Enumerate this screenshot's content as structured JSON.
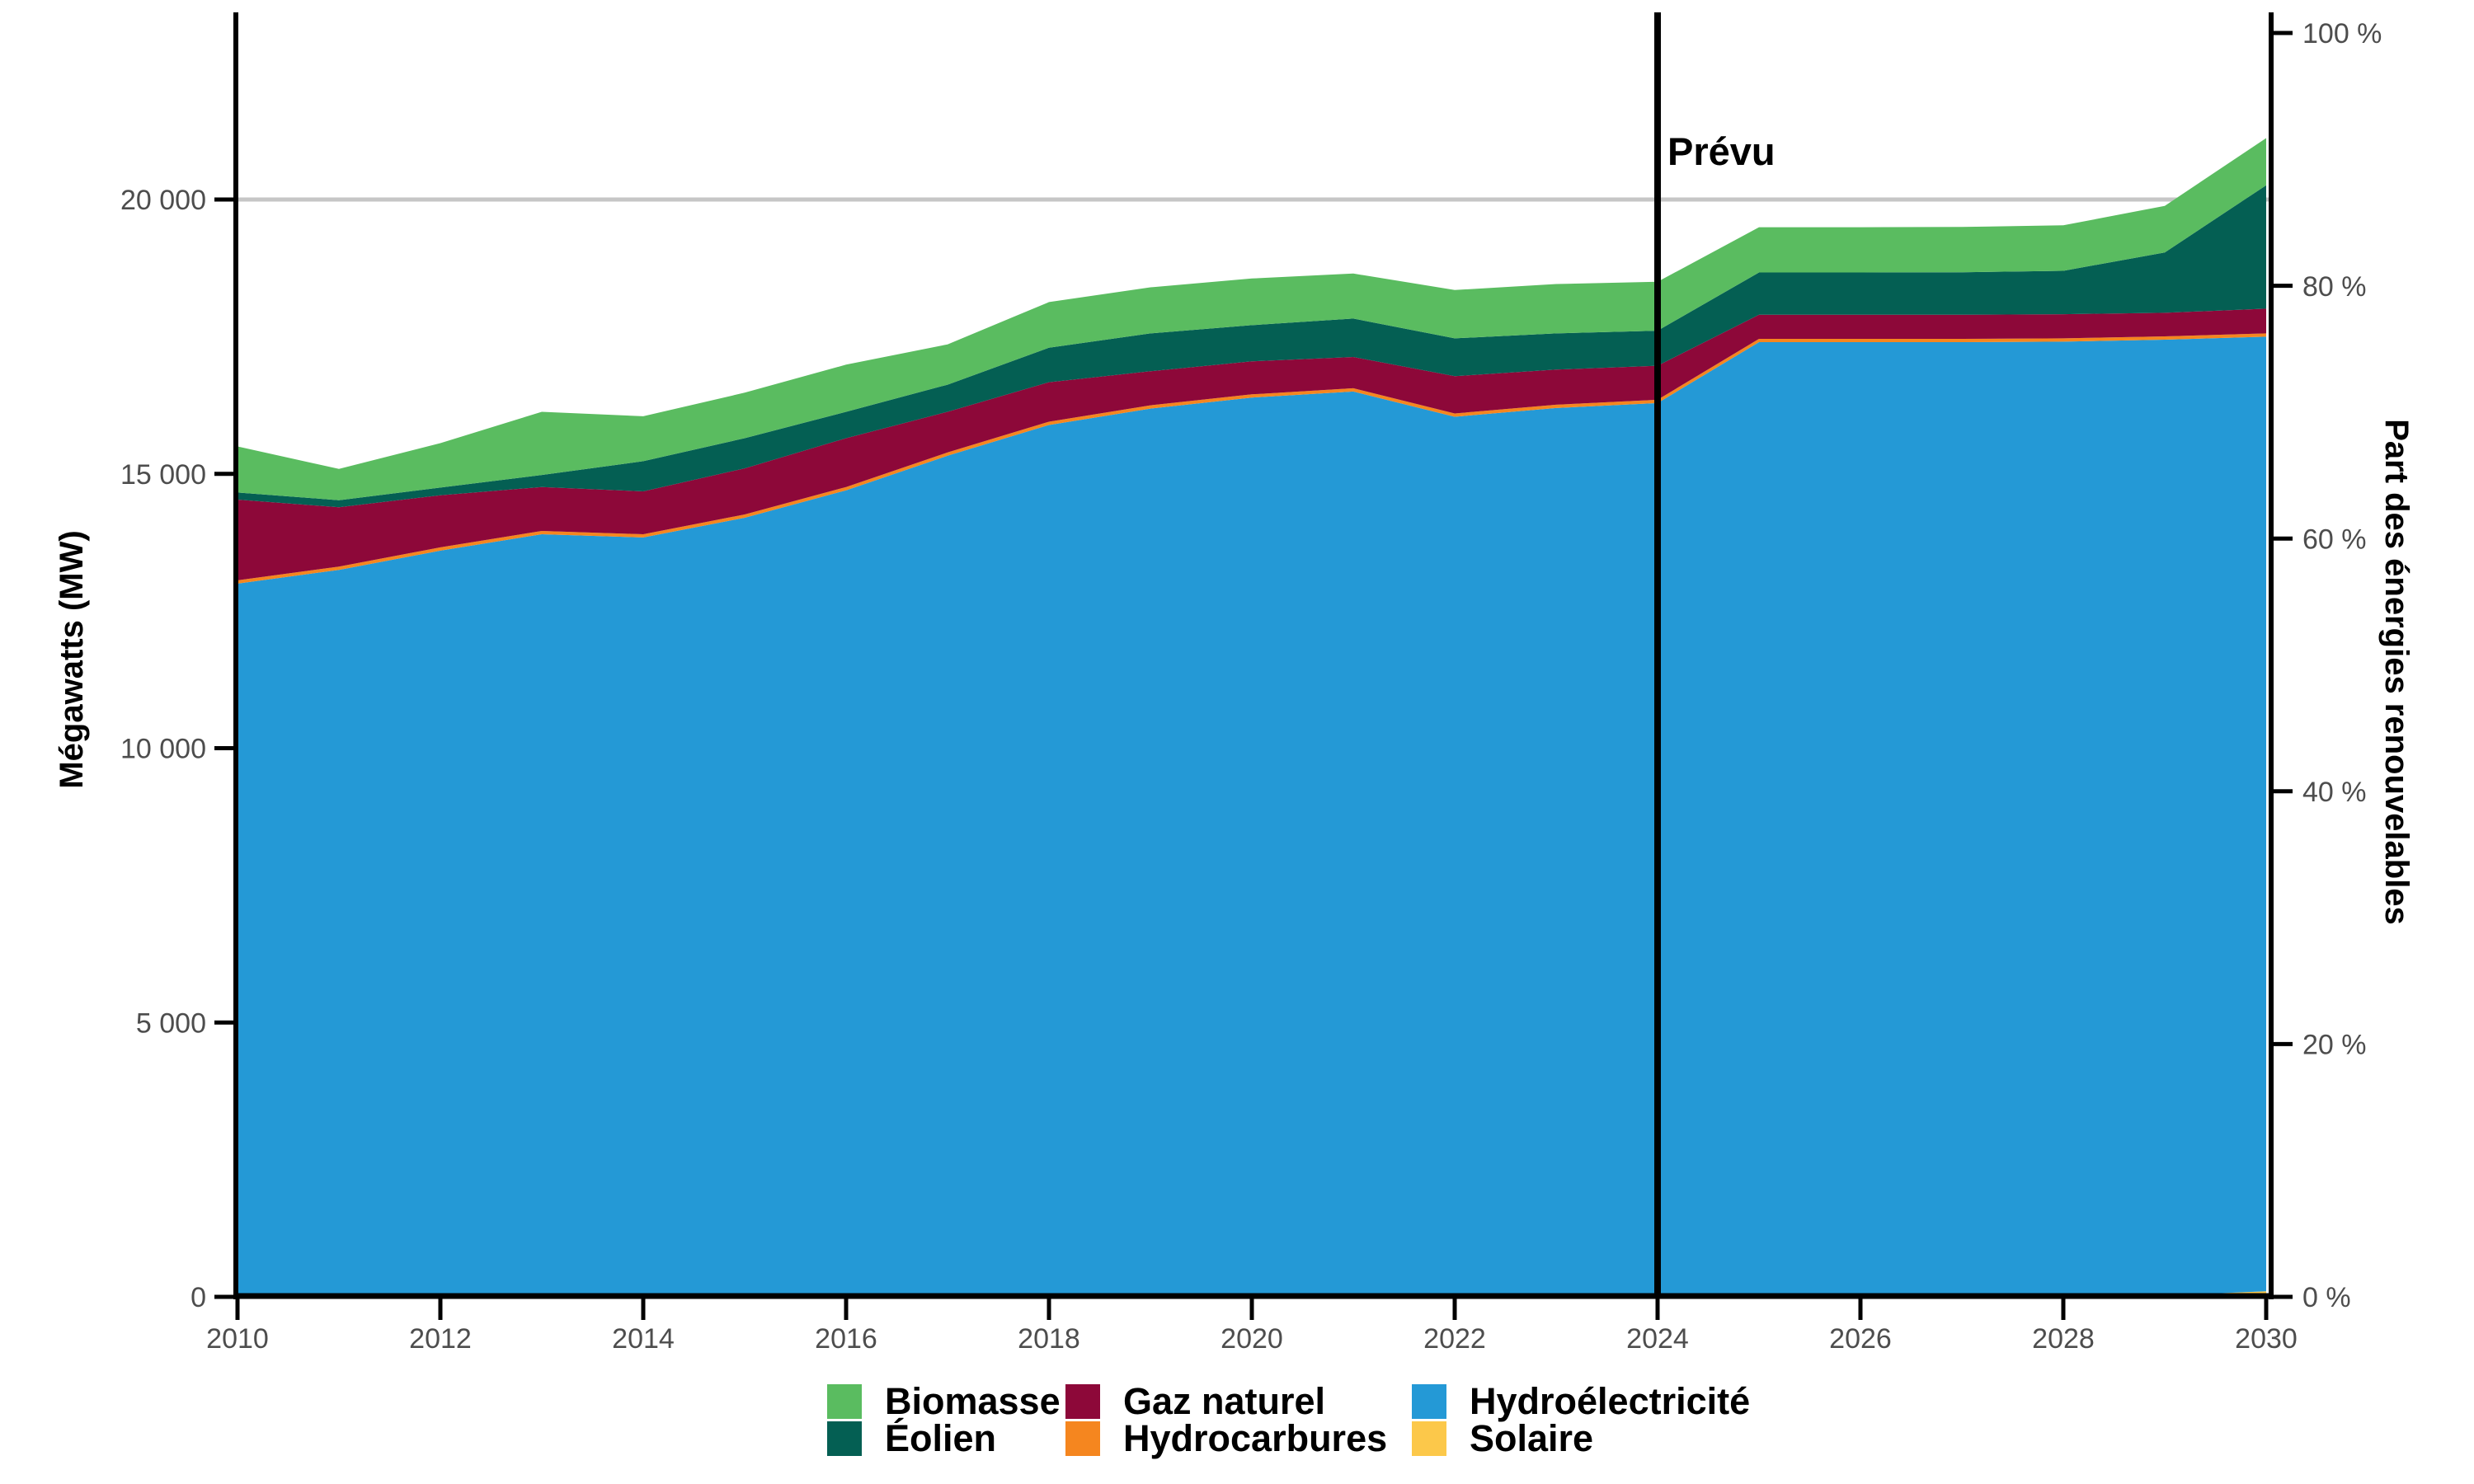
{
  "figure": {
    "left_axis_title": "Mégawatts (MW)",
    "right_axis_title": "Part des énergies renouvelables",
    "forecast_label": "Prévu"
  },
  "legend": {
    "items": [
      {
        "label": "Biomasse",
        "color": "#5abc60"
      },
      {
        "label": "Éolien",
        "color": "#045f53"
      },
      {
        "label": "Gaz naturel",
        "color": "#8d0839"
      },
      {
        "label": "Hydrocarbures",
        "color": "#f5861f"
      },
      {
        "label": "Hydroélectricité",
        "color": "#2499d6"
      },
      {
        "label": "Solaire",
        "color": "#fcc84a"
      }
    ]
  },
  "chart_data": {
    "type": "area",
    "stacked": true,
    "title": "",
    "xlabel": "",
    "ylabel_left": "Mégawatts (MW)",
    "ylabel_right": "Part des énergies renouvelables",
    "x": [
      2010,
      2011,
      2012,
      2013,
      2014,
      2015,
      2016,
      2017,
      2018,
      2019,
      2020,
      2021,
      2022,
      2023,
      2024,
      2025,
      2026,
      2027,
      2028,
      2029,
      2030
    ],
    "series": [
      {
        "name": "Solaire",
        "color": "#fcc84a",
        "values": [
          0,
          0,
          0,
          0,
          0,
          0,
          0,
          0,
          0,
          0,
          0,
          0,
          0,
          0,
          0,
          0,
          0,
          0,
          10,
          25,
          100
        ]
      },
      {
        "name": "Hydroélectricité",
        "color": "#2499d6",
        "values": [
          13000,
          13250,
          13600,
          13900,
          13840,
          14200,
          14700,
          15330,
          15890,
          16190,
          16390,
          16500,
          16040,
          16200,
          16290,
          17400,
          17400,
          17400,
          17400,
          17420,
          17400
        ]
      },
      {
        "name": "Hydrocarbures",
        "color": "#f5861f",
        "values": [
          60,
          60,
          60,
          60,
          60,
          60,
          60,
          60,
          60,
          60,
          60,
          60,
          60,
          60,
          60,
          60,
          60,
          60,
          60,
          60,
          60
        ]
      },
      {
        "name": "Gaz naturel",
        "color": "#8d0839",
        "values": [
          1470,
          1080,
          950,
          800,
          780,
          840,
          890,
          740,
          720,
          620,
          600,
          570,
          680,
          640,
          620,
          440,
          440,
          440,
          440,
          430,
          450
        ]
      },
      {
        "name": "Éolien",
        "color": "#045f53",
        "values": [
          130,
          130,
          140,
          220,
          550,
          550,
          480,
          495,
          630,
          690,
          660,
          700,
          690,
          660,
          640,
          770,
          770,
          775,
          790,
          1100,
          2250
        ]
      },
      {
        "name": "Biomasse",
        "color": "#5abc60",
        "values": [
          840,
          570,
          810,
          1150,
          820,
          830,
          860,
          735,
          830,
          840,
          850,
          820,
          880,
          900,
          890,
          825,
          825,
          825,
          830,
          850,
          860
        ]
      }
    ],
    "forecast_line_x": 2024,
    "forecast_label": "Prévu",
    "ylim_left": [
      0,
      23400
    ],
    "ylim_right_pct": [
      0,
      100
    ],
    "grid_on": true,
    "gridlines_mw": [
      20000
    ],
    "x_ticks": [
      {
        "value": 2010,
        "label": "2010"
      },
      {
        "value": 2012,
        "label": "2012"
      },
      {
        "value": 2014,
        "label": "2014"
      },
      {
        "value": 2016,
        "label": "2016"
      },
      {
        "value": 2018,
        "label": "2018"
      },
      {
        "value": 2020,
        "label": "2020"
      },
      {
        "value": 2022,
        "label": "2022"
      },
      {
        "value": 2024,
        "label": "2024"
      },
      {
        "value": 2026,
        "label": "2026"
      },
      {
        "value": 2028,
        "label": "2028"
      },
      {
        "value": 2030,
        "label": "2030"
      }
    ],
    "y_ticks_left": [
      {
        "value": 0,
        "label": "0"
      },
      {
        "value": 5000,
        "label": "5 000"
      },
      {
        "value": 10000,
        "label": "10 000"
      },
      {
        "value": 15000,
        "label": "15 000"
      },
      {
        "value": 20000,
        "label": "20 000"
      }
    ],
    "y_ticks_right": [
      {
        "value": 0,
        "label": "0 %"
      },
      {
        "value": 20,
        "label": "20 %"
      },
      {
        "value": 40,
        "label": "40 %"
      },
      {
        "value": 60,
        "label": "60 %"
      },
      {
        "value": 80,
        "label": "80 %"
      },
      {
        "value": 100,
        "label": "100 %"
      }
    ],
    "colors": {
      "axis": "#000000",
      "grid": "#c6c6c6",
      "tick_label": "#4d4d4d",
      "forecast_line": "#000000"
    },
    "legend_position": "bottom"
  }
}
